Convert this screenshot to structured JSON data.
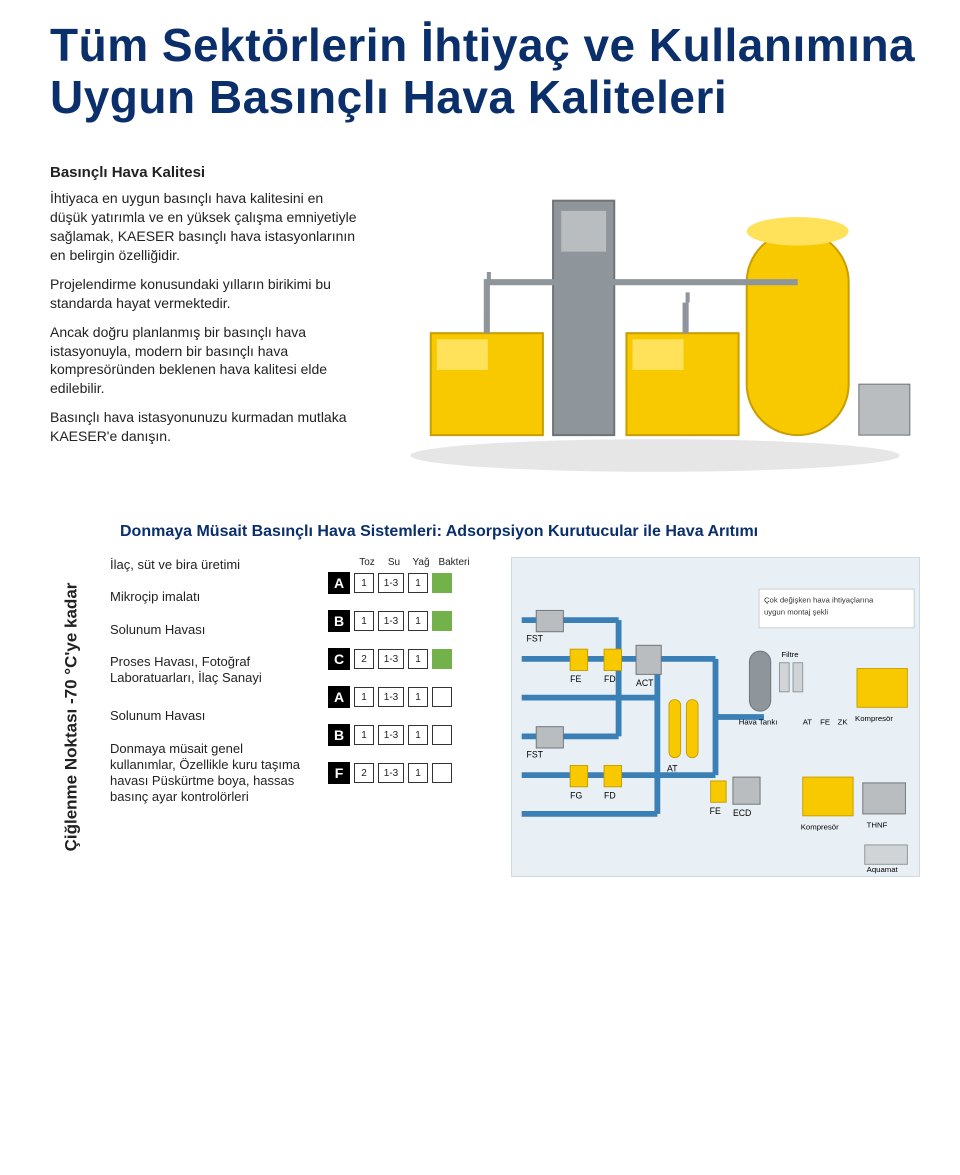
{
  "colors": {
    "headline": "#0a2f6b",
    "body_text": "#222222",
    "section_title": "#0a2f6b",
    "class_box_bg": "#000000",
    "class_box_fg": "#ffffff",
    "cell_border": "#333333",
    "cell_fill": "#73b24a",
    "diagram_bg": "#e8f0f6",
    "kaeser_yellow": "#f9c900",
    "kaeser_grey": "#b9bdbf",
    "pipe_blue": "#3a7fb5",
    "steel": "#8f969b"
  },
  "headline": "Tüm Sektörlerin İhtiyaç ve Kullanımına Uygun Basınçlı Hava Kaliteleri",
  "intro": {
    "subtitle": "Basınçlı Hava Kalitesi",
    "p1": "İhtiyaca en uygun basınçlı hava kalitesini en düşük yatırımla ve en yüksek çalışma emniyetiyle sağlamak, KAESER basınçlı hava istasyonlarının en belirgin özelliğidir.",
    "p2": "Projelendirme konusundaki yılların birikimi bu standarda hayat vermektedir.",
    "p3": "Ancak doğru planlanmış bir basınçlı hava istasyonuyla, modern bir basınçlı hava kompresöründen beklenen hava kalitesi elde edilebilir.",
    "p4": "Basınçlı hava istasyonunuzu kurmadan mutlaka KAESER'e danışın."
  },
  "section_title": "Donmaya Müsait Basınçlı Hava Sistemleri: Adsorpsiyon Kurutucular ile Hava Arıtımı",
  "rotated_label": "Çiğlenme Noktası -70 °C'ye kadar",
  "applications": [
    "İlaç, süt ve bira üretimi",
    "Mikroçip imalatı",
    "Solunum Havası",
    "Proses Havası, Fotoğraf Laboratuarları, İlaç Sanayi",
    "Solunum Havası",
    "Donmaya müsait genel kullanımlar, Özellikle kuru taşıma havası Püskürtme boya, hassas basınç ayar kontrolörleri"
  ],
  "table": {
    "headers": [
      "Toz",
      "Su",
      "Yağ",
      "Bakteri"
    ],
    "rows": [
      {
        "letter": "A",
        "cells": [
          "1",
          "1-3",
          "1"
        ],
        "bakteri_fill": true
      },
      {
        "letter": "B",
        "cells": [
          "1",
          "1-3",
          "1"
        ],
        "bakteri_fill": true
      },
      {
        "letter": "C",
        "cells": [
          "2",
          "1-3",
          "1"
        ],
        "bakteri_fill": true
      },
      {
        "letter": "A",
        "cells": [
          "1",
          "1-3",
          "1"
        ],
        "bakteri_fill": false
      },
      {
        "letter": "B",
        "cells": [
          "1",
          "1-3",
          "1"
        ],
        "bakteri_fill": false
      },
      {
        "letter": "F",
        "cells": [
          "2",
          "1-3",
          "1"
        ],
        "bakteri_fill": false
      }
    ]
  },
  "diagram_labels": {
    "FST": "FST",
    "FE": "FE",
    "FD": "FD",
    "FG": "FG",
    "ACT": "ACT",
    "AT": "AT",
    "ECD": "ECD",
    "note": "Çok değişken hava ihtiyaçlarına uygun montaj şekli",
    "hava_tanki": "Hava Tankı",
    "filtre": "Filtre",
    "at2": "AT",
    "fe2": "FE",
    "zk": "ZK",
    "kompresor": "Kompresör",
    "thnf": "THNF",
    "aquamat": "Aquamat"
  }
}
